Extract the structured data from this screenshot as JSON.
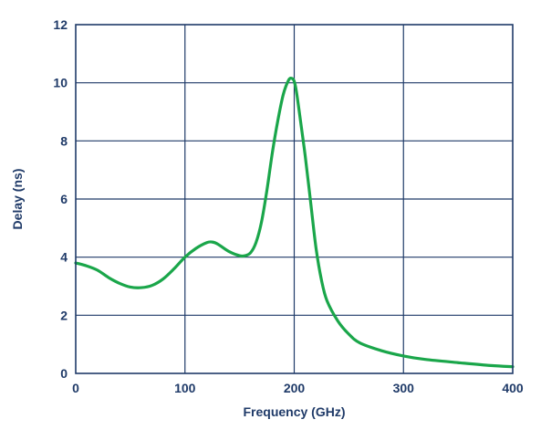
{
  "colors": {
    "axis_text": "#1f3a68",
    "grid": "#1f3a68",
    "frame": "#1f3a68",
    "series": "#1aa64a"
  },
  "chart_data": {
    "type": "line",
    "title": "",
    "xlabel": "Frequency (GHz)",
    "ylabel": "Delay (ns)",
    "xlim": [
      0,
      400
    ],
    "ylim": [
      0,
      12
    ],
    "xticks": [
      0,
      100,
      200,
      300,
      400
    ],
    "yticks": [
      0,
      2,
      4,
      6,
      8,
      10,
      12
    ],
    "grid": true,
    "legend": "none",
    "series": [
      {
        "x": [
          0,
          10,
          20,
          30,
          40,
          50,
          60,
          70,
          80,
          90,
          100,
          110,
          120,
          125,
          130,
          140,
          150,
          155,
          160,
          165,
          170,
          175,
          180,
          185,
          190,
          195,
          198,
          200,
          202,
          205,
          210,
          215,
          220,
          225,
          230,
          240,
          250,
          260,
          280,
          300,
          320,
          350,
          380,
          400
        ],
        "y": [
          3.8,
          3.7,
          3.55,
          3.3,
          3.1,
          2.97,
          2.95,
          3.03,
          3.25,
          3.6,
          4.0,
          4.3,
          4.5,
          4.52,
          4.45,
          4.2,
          4.05,
          4.05,
          4.15,
          4.5,
          5.2,
          6.3,
          7.6,
          8.7,
          9.6,
          10.1,
          10.15,
          10.05,
          9.7,
          8.9,
          7.5,
          5.9,
          4.3,
          3.2,
          2.5,
          1.8,
          1.35,
          1.05,
          0.78,
          0.6,
          0.48,
          0.37,
          0.27,
          0.23
        ]
      }
    ]
  }
}
